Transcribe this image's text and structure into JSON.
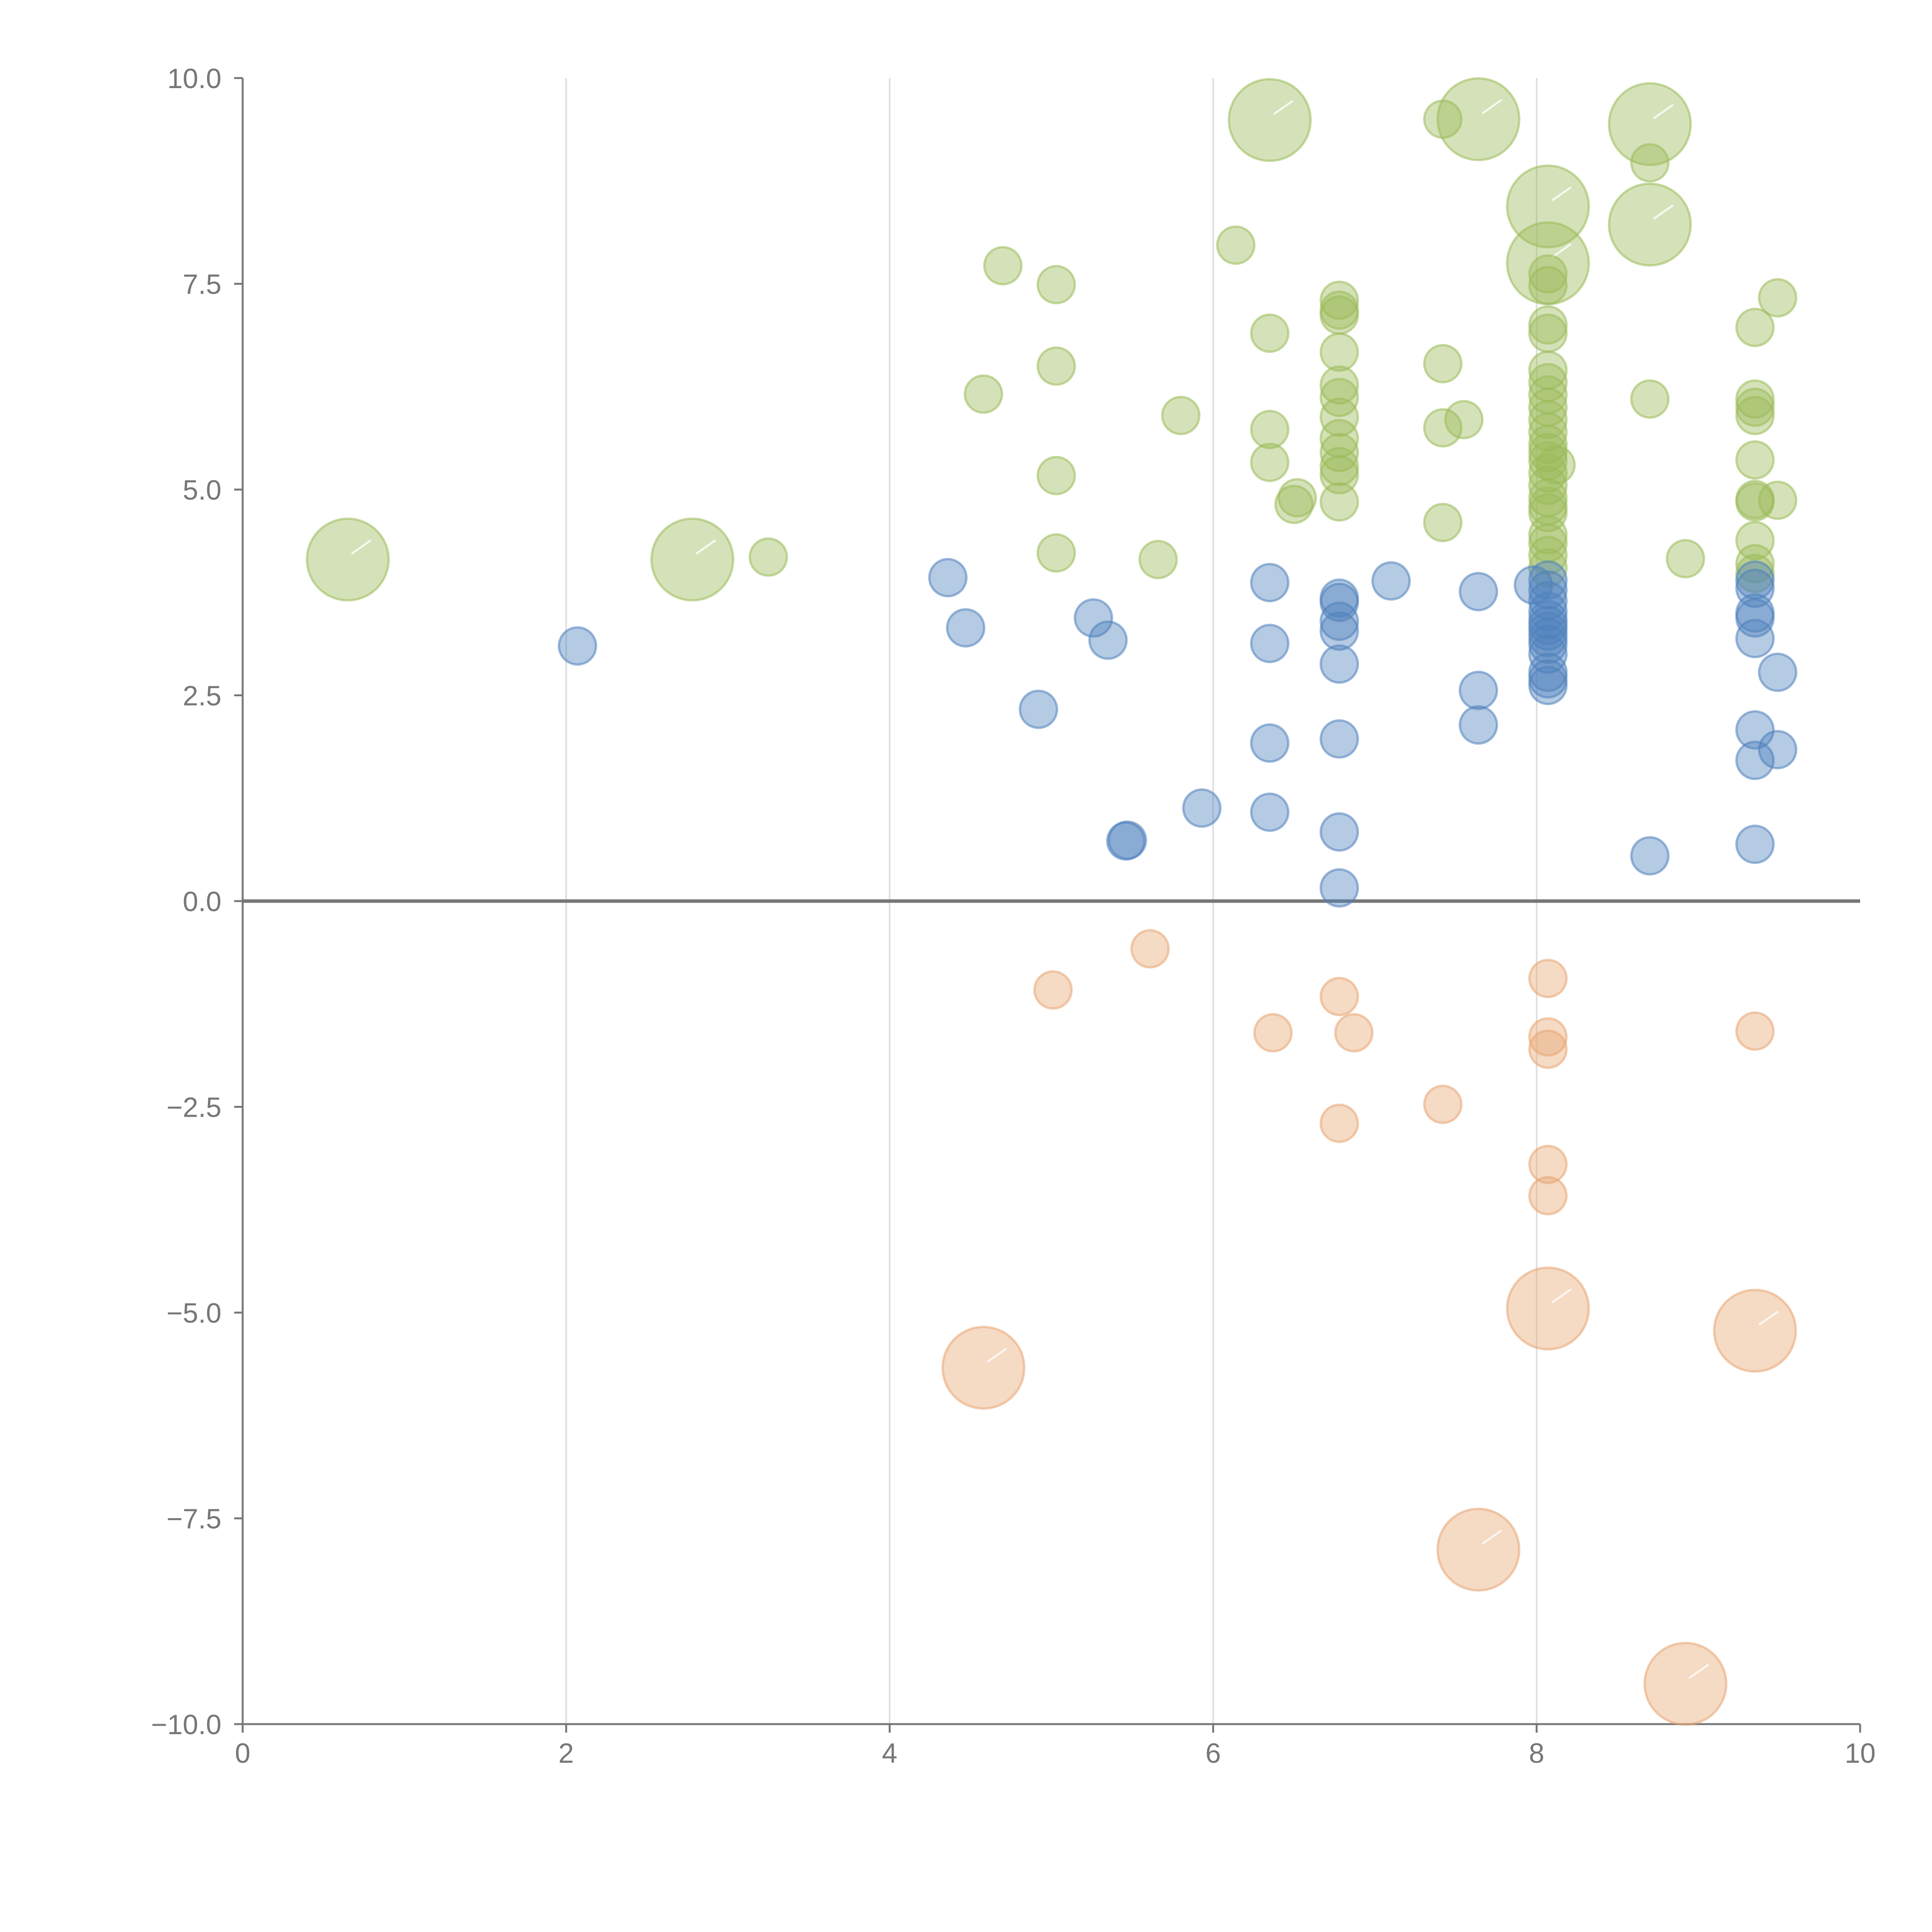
{
  "chart_data": {
    "type": "scatter",
    "variant": "bubble",
    "title": "",
    "xlabel": "",
    "ylabel": "",
    "xlim": [
      0,
      10
    ],
    "ylim": [
      -10,
      10
    ],
    "grid": "vertical",
    "legend": "none",
    "x_ticks": [
      "0",
      "2",
      "4",
      "6",
      "8",
      "10"
    ],
    "y_ticks": [
      "10.0",
      "7.5",
      "5.0",
      "2.5",
      "0.0",
      "−2.5",
      "−5.0",
      "−7.5",
      "−10.0"
    ],
    "series": [
      {
        "name": "green",
        "color": "#9bbb59",
        "points": [
          {
            "x": 0.65,
            "y": 4.15,
            "size": 2.2
          },
          {
            "x": 2.78,
            "y": 4.15,
            "size": 2.2
          },
          {
            "x": 3.25,
            "y": 4.18,
            "size": 1
          },
          {
            "x": 4.58,
            "y": 6.16,
            "size": 1
          },
          {
            "x": 4.7,
            "y": 7.72,
            "size": 1
          },
          {
            "x": 5.03,
            "y": 7.49,
            "size": 1
          },
          {
            "x": 5.03,
            "y": 6.5,
            "size": 1
          },
          {
            "x": 5.03,
            "y": 5.17,
            "size": 1
          },
          {
            "x": 5.03,
            "y": 4.23,
            "size": 1
          },
          {
            "x": 5.66,
            "y": 4.15,
            "size": 1
          },
          {
            "x": 5.8,
            "y": 5.9,
            "size": 1
          },
          {
            "x": 6.14,
            "y": 7.97,
            "size": 1
          },
          {
            "x": 6.35,
            "y": 9.49,
            "size": 2.2
          },
          {
            "x": 6.35,
            "y": 6.9,
            "size": 1
          },
          {
            "x": 6.35,
            "y": 5.73,
            "size": 1
          },
          {
            "x": 6.35,
            "y": 5.33,
            "size": 1
          },
          {
            "x": 6.5,
            "y": 4.82,
            "size": 1
          },
          {
            "x": 6.52,
            "y": 4.9,
            "size": 1
          },
          {
            "x": 6.78,
            "y": 7.3,
            "size": 1
          },
          {
            "x": 6.78,
            "y": 7.18,
            "size": 1
          },
          {
            "x": 6.78,
            "y": 7.12,
            "size": 1
          },
          {
            "x": 6.78,
            "y": 6.67,
            "size": 1
          },
          {
            "x": 6.78,
            "y": 6.27,
            "size": 1
          },
          {
            "x": 6.78,
            "y": 6.12,
            "size": 1
          },
          {
            "x": 6.78,
            "y": 5.88,
            "size": 1
          },
          {
            "x": 6.78,
            "y": 5.62,
            "size": 1
          },
          {
            "x": 6.78,
            "y": 5.45,
            "size": 1
          },
          {
            "x": 6.78,
            "y": 5.28,
            "size": 1
          },
          {
            "x": 6.78,
            "y": 5.18,
            "size": 1
          },
          {
            "x": 6.78,
            "y": 4.85,
            "size": 1
          },
          {
            "x": 7.42,
            "y": 9.5,
            "size": 1
          },
          {
            "x": 7.42,
            "y": 6.53,
            "size": 1
          },
          {
            "x": 7.42,
            "y": 5.75,
            "size": 1
          },
          {
            "x": 7.42,
            "y": 4.6,
            "size": 1
          },
          {
            "x": 7.55,
            "y": 5.85,
            "size": 1
          },
          {
            "x": 7.64,
            "y": 9.5,
            "size": 2.2
          },
          {
            "x": 8.07,
            "y": 8.44,
            "size": 2.2
          },
          {
            "x": 8.07,
            "y": 7.75,
            "size": 2.2
          },
          {
            "x": 8.07,
            "y": 7.62,
            "size": 1
          },
          {
            "x": 8.07,
            "y": 7.48,
            "size": 1
          },
          {
            "x": 8.07,
            "y": 7.0,
            "size": 1
          },
          {
            "x": 8.07,
            "y": 6.9,
            "size": 1
          },
          {
            "x": 8.07,
            "y": 6.45,
            "size": 1
          },
          {
            "x": 8.07,
            "y": 6.3,
            "size": 1
          },
          {
            "x": 8.07,
            "y": 6.15,
            "size": 1
          },
          {
            "x": 8.07,
            "y": 6.0,
            "size": 1
          },
          {
            "x": 8.07,
            "y": 5.85,
            "size": 1
          },
          {
            "x": 8.07,
            "y": 5.7,
            "size": 1
          },
          {
            "x": 8.07,
            "y": 5.55,
            "size": 1
          },
          {
            "x": 8.07,
            "y": 5.45,
            "size": 1
          },
          {
            "x": 8.07,
            "y": 5.35,
            "size": 1
          },
          {
            "x": 8.07,
            "y": 5.2,
            "size": 1
          },
          {
            "x": 8.07,
            "y": 5.05,
            "size": 1
          },
          {
            "x": 8.07,
            "y": 4.9,
            "size": 1
          },
          {
            "x": 8.07,
            "y": 4.8,
            "size": 1
          },
          {
            "x": 8.07,
            "y": 4.72,
            "size": 1
          },
          {
            "x": 8.07,
            "y": 4.45,
            "size": 1
          },
          {
            "x": 8.07,
            "y": 4.35,
            "size": 1
          },
          {
            "x": 8.07,
            "y": 4.2,
            "size": 1
          },
          {
            "x": 8.07,
            "y": 4.05,
            "size": 1
          },
          {
            "x": 8.12,
            "y": 5.3,
            "size": 1
          },
          {
            "x": 8.7,
            "y": 9.44,
            "size": 2.2
          },
          {
            "x": 8.7,
            "y": 8.97,
            "size": 1
          },
          {
            "x": 8.7,
            "y": 8.22,
            "size": 2.2
          },
          {
            "x": 8.7,
            "y": 6.1,
            "size": 1
          },
          {
            "x": 8.92,
            "y": 4.16,
            "size": 1
          },
          {
            "x": 9.35,
            "y": 6.97,
            "size": 1
          },
          {
            "x": 9.35,
            "y": 6.1,
            "size": 1
          },
          {
            "x": 9.35,
            "y": 6.0,
            "size": 1
          },
          {
            "x": 9.35,
            "y": 5.9,
            "size": 1
          },
          {
            "x": 9.35,
            "y": 5.36,
            "size": 1
          },
          {
            "x": 9.35,
            "y": 4.88,
            "size": 1
          },
          {
            "x": 9.35,
            "y": 4.85,
            "size": 1
          },
          {
            "x": 9.35,
            "y": 4.38,
            "size": 1
          },
          {
            "x": 9.35,
            "y": 4.1,
            "size": 1
          },
          {
            "x": 9.35,
            "y": 3.98,
            "size": 1
          },
          {
            "x": 9.49,
            "y": 7.33,
            "size": 1
          },
          {
            "x": 9.49,
            "y": 4.87,
            "size": 1
          }
        ]
      },
      {
        "name": "blue",
        "color": "#4f81bd",
        "points": [
          {
            "x": 2.07,
            "y": 3.1,
            "size": 1
          },
          {
            "x": 4.36,
            "y": 3.93,
            "size": 1
          },
          {
            "x": 4.47,
            "y": 3.32,
            "size": 1
          },
          {
            "x": 4.92,
            "y": 2.33,
            "size": 1
          },
          {
            "x": 5.26,
            "y": 3.44,
            "size": 1
          },
          {
            "x": 5.35,
            "y": 3.17,
            "size": 1
          },
          {
            "x": 5.46,
            "y": 0.73,
            "size": 1
          },
          {
            "x": 5.47,
            "y": 0.74,
            "size": 1
          },
          {
            "x": 5.93,
            "y": 1.13,
            "size": 1
          },
          {
            "x": 6.35,
            "y": 3.87,
            "size": 1
          },
          {
            "x": 6.35,
            "y": 3.13,
            "size": 1
          },
          {
            "x": 6.35,
            "y": 1.92,
            "size": 1
          },
          {
            "x": 6.35,
            "y": 1.08,
            "size": 1
          },
          {
            "x": 6.78,
            "y": 3.68,
            "size": 1
          },
          {
            "x": 6.78,
            "y": 3.63,
            "size": 1
          },
          {
            "x": 6.78,
            "y": 3.4,
            "size": 1
          },
          {
            "x": 6.78,
            "y": 3.28,
            "size": 1
          },
          {
            "x": 6.78,
            "y": 2.88,
            "size": 1
          },
          {
            "x": 6.78,
            "y": 1.97,
            "size": 1
          },
          {
            "x": 6.78,
            "y": 0.84,
            "size": 1
          },
          {
            "x": 6.78,
            "y": 0.16,
            "size": 1
          },
          {
            "x": 7.1,
            "y": 3.89,
            "size": 1
          },
          {
            "x": 7.64,
            "y": 3.76,
            "size": 1
          },
          {
            "x": 7.64,
            "y": 2.56,
            "size": 1
          },
          {
            "x": 7.64,
            "y": 2.14,
            "size": 1
          },
          {
            "x": 7.98,
            "y": 3.84,
            "size": 1
          },
          {
            "x": 8.07,
            "y": 3.9,
            "size": 1
          },
          {
            "x": 8.07,
            "y": 3.78,
            "size": 1
          },
          {
            "x": 8.07,
            "y": 3.65,
            "size": 1
          },
          {
            "x": 8.07,
            "y": 3.52,
            "size": 1
          },
          {
            "x": 8.07,
            "y": 3.42,
            "size": 1
          },
          {
            "x": 8.07,
            "y": 3.35,
            "size": 1
          },
          {
            "x": 8.07,
            "y": 3.28,
            "size": 1
          },
          {
            "x": 8.07,
            "y": 3.2,
            "size": 1
          },
          {
            "x": 8.07,
            "y": 3.12,
            "size": 1
          },
          {
            "x": 8.07,
            "y": 3.0,
            "size": 1
          },
          {
            "x": 8.07,
            "y": 2.78,
            "size": 1
          },
          {
            "x": 8.07,
            "y": 2.7,
            "size": 1
          },
          {
            "x": 8.07,
            "y": 2.62,
            "size": 1
          },
          {
            "x": 8.7,
            "y": 0.55,
            "size": 1
          },
          {
            "x": 9.35,
            "y": 3.9,
            "size": 1
          },
          {
            "x": 9.35,
            "y": 3.8,
            "size": 1
          },
          {
            "x": 9.35,
            "y": 3.5,
            "size": 1
          },
          {
            "x": 9.35,
            "y": 3.44,
            "size": 1
          },
          {
            "x": 9.35,
            "y": 3.19,
            "size": 1
          },
          {
            "x": 9.35,
            "y": 2.08,
            "size": 1
          },
          {
            "x": 9.35,
            "y": 1.71,
            "size": 1
          },
          {
            "x": 9.35,
            "y": 0.69,
            "size": 1
          },
          {
            "x": 9.49,
            "y": 2.78,
            "size": 1
          },
          {
            "x": 9.49,
            "y": 1.84,
            "size": 1
          }
        ]
      },
      {
        "name": "orange",
        "color": "#e8a673",
        "points": [
          {
            "x": 4.58,
            "y": -5.67,
            "size": 2.2
          },
          {
            "x": 5.01,
            "y": -1.08,
            "size": 1
          },
          {
            "x": 5.61,
            "y": -0.58,
            "size": 1
          },
          {
            "x": 6.37,
            "y": -1.6,
            "size": 1
          },
          {
            "x": 6.78,
            "y": -1.16,
            "size": 1
          },
          {
            "x": 6.78,
            "y": -2.7,
            "size": 1
          },
          {
            "x": 6.87,
            "y": -1.6,
            "size": 1
          },
          {
            "x": 7.42,
            "y": -2.47,
            "size": 1
          },
          {
            "x": 7.64,
            "y": -7.88,
            "size": 2.2
          },
          {
            "x": 8.07,
            "y": -0.94,
            "size": 1
          },
          {
            "x": 8.07,
            "y": -1.65,
            "size": 1
          },
          {
            "x": 8.07,
            "y": -1.8,
            "size": 1
          },
          {
            "x": 8.07,
            "y": -3.2,
            "size": 1
          },
          {
            "x": 8.07,
            "y": -3.58,
            "size": 1
          },
          {
            "x": 8.07,
            "y": -4.95,
            "size": 2.2
          },
          {
            "x": 8.92,
            "y": -9.51,
            "size": 2.2
          },
          {
            "x": 9.35,
            "y": -1.58,
            "size": 1
          },
          {
            "x": 9.35,
            "y": -5.22,
            "size": 2.2
          }
        ]
      }
    ]
  }
}
